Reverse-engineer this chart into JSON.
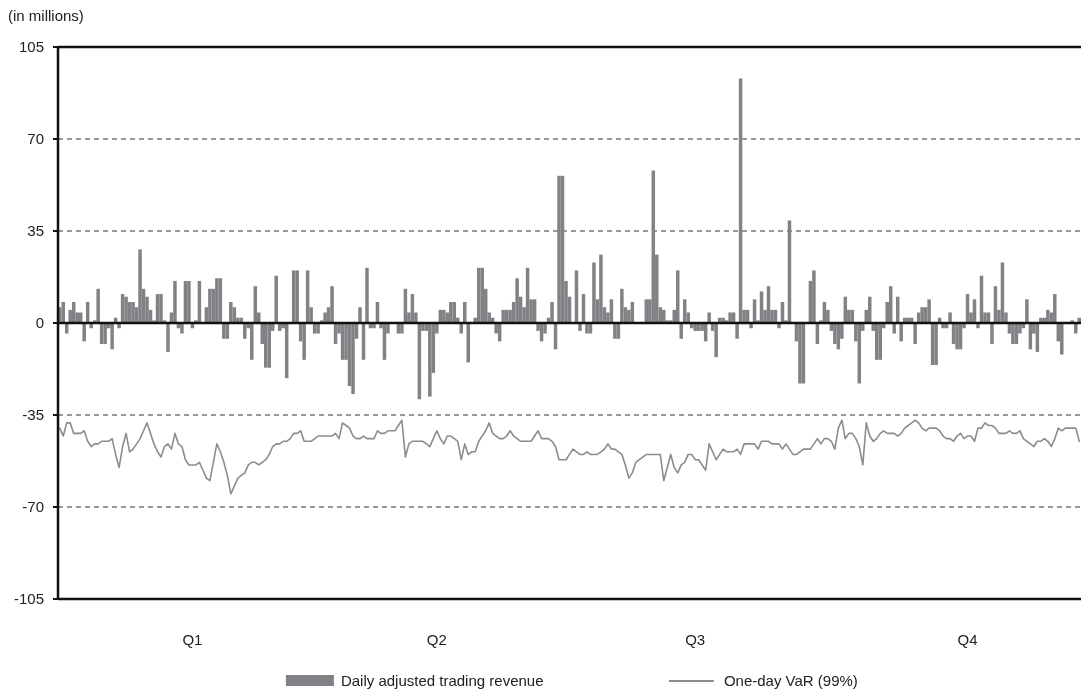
{
  "chart_data": {
    "type": "bar",
    "ylabel": "(in millions)",
    "ylim": [
      -105,
      105
    ],
    "yticks": [
      -105,
      -70,
      -35,
      0,
      35,
      70,
      105
    ],
    "grid": "y",
    "legend": "bottom",
    "categories": [
      null,
      null,
      null,
      null,
      null,
      null,
      null,
      null,
      null,
      null,
      null,
      null,
      null,
      null,
      null,
      null,
      null,
      null,
      null,
      null,
      null,
      null,
      null,
      null,
      null,
      null,
      null,
      null,
      null,
      null,
      null,
      null,
      null,
      null,
      null,
      null,
      null,
      null,
      "Q1",
      null,
      null,
      null,
      null,
      null,
      null,
      null,
      null,
      null,
      null,
      null,
      null,
      null,
      null,
      null,
      null,
      null,
      null,
      null,
      null,
      null,
      null,
      null,
      null,
      null,
      null,
      null,
      null,
      null,
      null,
      null,
      null,
      null,
      null,
      null,
      null,
      null,
      null,
      null,
      null,
      null,
      null,
      null,
      null,
      null,
      null,
      null,
      null,
      null,
      null,
      null,
      null,
      null,
      null,
      null,
      null,
      null,
      null,
      null,
      null,
      null,
      null,
      null,
      null,
      null,
      null,
      null,
      null,
      null,
      "Q2",
      null,
      null,
      null,
      null,
      null,
      null,
      null,
      null,
      null,
      null,
      null,
      null,
      null,
      null,
      null,
      null,
      null,
      null,
      null,
      null,
      null,
      null,
      null,
      null,
      null,
      null,
      null,
      null,
      null,
      null,
      null,
      null,
      null,
      null,
      null,
      null,
      null,
      null,
      null,
      null,
      null,
      null,
      null,
      null,
      null,
      null,
      null,
      null,
      null,
      null,
      null,
      null,
      null,
      null,
      null,
      null,
      null,
      null,
      null,
      null,
      null,
      null,
      null,
      null,
      null,
      null,
      null,
      null,
      null,
      null,
      null,
      null,
      null,
      "Q3",
      null,
      null,
      null,
      null,
      null,
      null,
      null,
      null,
      null,
      null,
      null,
      null,
      null,
      null,
      null,
      null,
      null,
      null,
      null,
      null,
      null,
      null,
      null,
      null,
      null,
      null,
      null,
      null,
      null,
      null,
      null,
      null,
      null,
      null,
      null,
      null,
      null,
      null,
      null,
      null,
      null,
      null,
      null,
      null,
      null,
      null,
      null,
      null,
      null,
      null,
      null,
      null,
      null,
      null,
      null,
      null,
      null,
      null,
      null,
      null,
      null,
      null,
      null,
      null,
      null,
      null,
      null,
      null,
      null,
      null,
      null,
      null,
      null,
      null,
      null,
      null,
      null,
      "Q4",
      null,
      null,
      null,
      null,
      null,
      null,
      null,
      null,
      null,
      null,
      null,
      null,
      null,
      null,
      null,
      null,
      null,
      null,
      null,
      null,
      null,
      null,
      null,
      null,
      null,
      null,
      null,
      null,
      null,
      null,
      null,
      null
    ],
    "series": [
      {
        "name": "Daily adjusted trading revenue",
        "color": "#808285",
        "values": [
          6,
          8,
          -4,
          5,
          8,
          4,
          4,
          -7,
          8,
          -2,
          1,
          13,
          -8,
          -8,
          -2,
          -10,
          2,
          -2,
          11,
          10,
          8,
          8,
          6,
          28,
          13,
          10,
          5,
          1,
          11,
          11,
          1,
          -11,
          4,
          16,
          -2,
          -4,
          16,
          16,
          -2,
          1,
          16,
          null,
          6,
          13,
          13,
          17,
          17,
          -6,
          -6,
          8,
          6,
          2,
          2,
          -6,
          -2,
          -14,
          14,
          4,
          -8,
          -17,
          -17,
          -3,
          18,
          -3,
          -2,
          -21,
          null,
          20,
          20,
          -7,
          -14,
          20,
          6,
          -4,
          -4,
          1,
          4,
          6,
          14,
          -8,
          -4,
          -14,
          -14,
          -24,
          -27,
          -6,
          6,
          -14,
          21,
          -2,
          -2,
          8,
          -2,
          -14,
          -4,
          null,
          null,
          -4,
          -4,
          13,
          4,
          11,
          4,
          -29,
          -3,
          -3,
          -28,
          -19,
          -4,
          5,
          5,
          4,
          8,
          8,
          2,
          -4,
          8,
          -15,
          null,
          2,
          21,
          21,
          13,
          4,
          2,
          -4,
          -7,
          5,
          5,
          5,
          8,
          17,
          10,
          6,
          21,
          9,
          9,
          -3,
          -7,
          -4,
          2,
          8,
          -10,
          56,
          56,
          16,
          10,
          null,
          20,
          -3,
          11,
          -4,
          -4,
          23,
          9,
          26,
          6,
          4,
          9,
          -6,
          -6,
          13,
          6,
          5,
          8,
          null,
          null,
          null,
          9,
          9,
          58,
          26,
          6,
          5,
          1,
          1,
          5,
          20,
          -6,
          9,
          4,
          -2,
          -3,
          -3,
          -3,
          -7,
          4,
          -3,
          -13,
          2,
          2,
          1,
          4,
          4,
          -6,
          93,
          5,
          5,
          -2,
          9,
          1,
          12,
          5,
          14,
          5,
          5,
          -2,
          8,
          1,
          39,
          null,
          -7,
          -23,
          -23,
          null,
          16,
          20,
          -8,
          1,
          8,
          5,
          -3,
          -8,
          -10,
          -6,
          10,
          5,
          5,
          -7,
          -23,
          -3,
          5,
          10,
          -3,
          -14,
          -14,
          -2,
          8,
          14,
          -4,
          10,
          -7,
          2,
          2,
          2,
          -8,
          4,
          6,
          6,
          9,
          -16,
          -16,
          2,
          -2,
          -2,
          4,
          -8,
          -10,
          -10,
          -2,
          11,
          4,
          9,
          -2,
          18,
          4,
          4,
          -8,
          14,
          5,
          23,
          4,
          -4,
          -8,
          -8,
          -4,
          -2,
          9,
          -10,
          -4,
          -11,
          2,
          2,
          5,
          4,
          11,
          -7,
          -12,
          null,
          null,
          1,
          -4,
          2
        ]
      },
      {
        "name": "One-day VaR (99%)",
        "type": "line",
        "color": "#8c8c8c",
        "line_style": "solid",
        "values": [
          -40,
          -43,
          -38,
          -38,
          -42,
          -42,
          -42,
          -41,
          -45,
          -47,
          -46,
          -46,
          -45,
          -45,
          -45,
          -44,
          -50,
          -55,
          -47,
          -42,
          -49,
          -48,
          -46,
          -44,
          -41,
          -38,
          -42,
          -46,
          -49,
          -51,
          -47,
          -46,
          -48,
          -42,
          -46,
          -47,
          -52,
          -54,
          -54,
          -54,
          -53,
          -56,
          -59,
          -60,
          -53,
          -46,
          -49,
          -53,
          -58,
          -65,
          -62,
          -59,
          -58,
          -57,
          -54,
          -53,
          -53,
          -54,
          -53,
          -52,
          -50,
          -47,
          -46,
          -46,
          -45,
          -45,
          -44,
          -42,
          -42,
          -41,
          -45,
          -45,
          -45,
          -44,
          -43,
          -43,
          -43,
          -43,
          -43,
          -42,
          -44,
          -38,
          -39,
          -40,
          -43,
          -44,
          -44,
          -43,
          -44,
          -44,
          -44,
          -41,
          -42,
          -42,
          -41,
          -41,
          -41,
          -39,
          -37,
          -51,
          -46,
          -45,
          -45,
          -45,
          -45,
          -46,
          -47,
          -44,
          -41,
          -44,
          -46,
          -43,
          -43,
          -44,
          -45,
          -52,
          -46,
          -50,
          -49,
          -49,
          -45,
          -43,
          -41,
          -38,
          -42,
          -43,
          -44,
          -44,
          -43,
          -41,
          -43,
          -44,
          -45,
          -45,
          -45,
          -45,
          -43,
          -41,
          -44,
          -44,
          -44,
          -45,
          -47,
          -52,
          -52,
          -52,
          -50,
          -48,
          -49,
          -50,
          -50,
          -49,
          -50,
          -50,
          -50,
          -49,
          -48,
          -46,
          -48,
          -48,
          -49,
          -50,
          -54,
          -59,
          -57,
          -53,
          -52,
          -51,
          -50,
          -50,
          -50,
          -50,
          -50,
          -60,
          -55,
          -50,
          -55,
          -57,
          -54,
          -53,
          -50,
          -50,
          -52,
          -52,
          -54,
          -56,
          -46,
          -49,
          -52,
          -50,
          -48,
          -49,
          -49,
          -49,
          -48,
          -50,
          -46,
          -46,
          -46,
          -46,
          -48,
          -45,
          -45,
          -45,
          -46,
          -46,
          -46,
          -48,
          -46,
          -48,
          -50,
          -50,
          -49,
          -48,
          -48,
          -48,
          -46,
          -44,
          -46,
          -44,
          -44,
          -45,
          -48,
          -40,
          -37,
          -44,
          -42,
          -42,
          -44,
          -47,
          -54,
          -38,
          -43,
          -45,
          -44,
          -42,
          -41,
          -42,
          -42,
          -42,
          -43,
          -42,
          -40,
          -39,
          -38,
          -37,
          -38,
          -40,
          -41,
          -40,
          -40,
          -40,
          -41,
          -43,
          -44,
          -44,
          -45,
          -43,
          -42,
          -44,
          -43,
          -43,
          -45,
          -40,
          -40,
          -38,
          -39,
          -39,
          -40,
          -42,
          -42,
          -42,
          -41,
          -42,
          -42,
          -41,
          -44,
          -45,
          -46,
          -47,
          -45,
          -45,
          -44,
          -45,
          -47,
          -44,
          -40,
          -41,
          -40,
          -40,
          -40,
          -40,
          -45
        ]
      }
    ]
  }
}
